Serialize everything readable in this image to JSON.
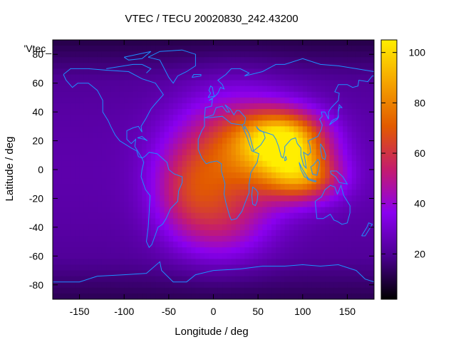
{
  "chart_data": {
    "type": "heatmap",
    "title": "VTEC / TECU 20020830_242.43200",
    "xlabel": "Longitude / deg",
    "ylabel": "Latitude / deg",
    "series_label": "'Vtec_",
    "xlim": [
      -180,
      180
    ],
    "ylim": [
      -90,
      90
    ],
    "x_ticks": [
      -150,
      -100,
      -50,
      0,
      50,
      100,
      150
    ],
    "y_ticks": [
      -80,
      -60,
      -40,
      -20,
      0,
      20,
      40,
      60,
      80
    ],
    "x_tick_labels": [
      "-150",
      "-100",
      "-50",
      "0",
      "50",
      "100",
      "150"
    ],
    "y_tick_labels": [
      "-80",
      "-60",
      "-40",
      "-20",
      "0",
      "20",
      "40",
      "60",
      "80"
    ],
    "colorbar": {
      "range": [
        2,
        105
      ],
      "ticks": [
        20,
        40,
        60,
        80,
        100
      ],
      "tick_labels": [
        "20",
        "40",
        "60",
        "80",
        "100"
      ],
      "palette": [
        "#000000",
        "#4b0090",
        "#8a00f0",
        "#c41c6e",
        "#e25a00",
        "#f5a300",
        "#ffee00"
      ]
    },
    "field_model": {
      "background": 18,
      "features": [
        {
          "lon": 80,
          "lat": 20,
          "peak": 100
        },
        {
          "lon": 25,
          "lat": 10,
          "peak": 70
        },
        {
          "lon": 100,
          "lat": -5,
          "peak": 75
        },
        {
          "lon": -30,
          "lat": -15,
          "peak": 45
        },
        {
          "lon": 10,
          "lat": -40,
          "peak": 40
        }
      ]
    },
    "grid": false,
    "coastlines": true,
    "coastline_color": "#1e90ff"
  }
}
